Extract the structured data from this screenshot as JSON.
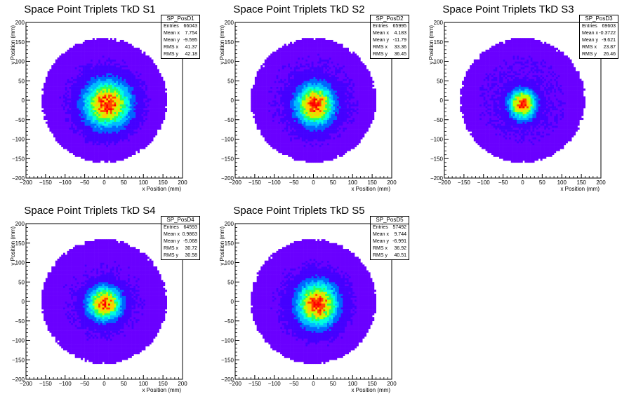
{
  "chart_data": [
    {
      "type": "heatmap",
      "title": "Space Point Triplets TkD S1",
      "xlabel": "x Position (mm)",
      "ylabel": "y Position (mm)",
      "xlim": [
        -200,
        200
      ],
      "ylim": [
        -200,
        200
      ],
      "xticks": [
        -200,
        -150,
        -100,
        -50,
        0,
        50,
        100,
        150,
        200
      ],
      "yticks": [
        -200,
        -150,
        -100,
        -50,
        0,
        50,
        100,
        150,
        200
      ],
      "grid": false,
      "stats": {
        "name": "SP_PosD1",
        "rows": [
          {
            "label": "Entries",
            "value": "66043"
          },
          {
            "label": "Mean x",
            "value": "7.754"
          },
          {
            "label": "Mean y",
            "value": "-9.595"
          },
          {
            "label": "RMS x",
            "value": "41.37"
          },
          {
            "label": "RMS y",
            "value": "42.18"
          }
        ]
      },
      "distribution": {
        "mean_x": 7.754,
        "mean_y": -9.595,
        "rms_x": 41.37,
        "rms_y": 42.18,
        "radius": 160,
        "entries": 66043
      }
    },
    {
      "type": "heatmap",
      "title": "Space Point Triplets TkD S2",
      "xlabel": "x Position (mm)",
      "ylabel": "y Position (mm)",
      "xlim": [
        -200,
        200
      ],
      "ylim": [
        -200,
        200
      ],
      "xticks": [
        -200,
        -150,
        -100,
        -50,
        0,
        50,
        100,
        150,
        200
      ],
      "yticks": [
        -200,
        -150,
        -100,
        -50,
        0,
        50,
        100,
        150,
        200
      ],
      "grid": false,
      "stats": {
        "name": "SP_PosD2",
        "rows": [
          {
            "label": "Entries",
            "value": "65995"
          },
          {
            "label": "Mean x",
            "value": "4.183"
          },
          {
            "label": "Mean y",
            "value": "-11.79"
          },
          {
            "label": "RMS x",
            "value": "33.36"
          },
          {
            "label": "RMS y",
            "value": "36.45"
          }
        ]
      },
      "distribution": {
        "mean_x": 4.183,
        "mean_y": -11.79,
        "rms_x": 33.36,
        "rms_y": 36.45,
        "radius": 160,
        "entries": 65995
      }
    },
    {
      "type": "heatmap",
      "title": "Space Point Triplets TkD S3",
      "xlabel": "x Position (mm)",
      "ylabel": "y Position (mm)",
      "xlim": [
        -200,
        200
      ],
      "ylim": [
        -200,
        200
      ],
      "xticks": [
        -200,
        -150,
        -100,
        -50,
        0,
        50,
        100,
        150,
        200
      ],
      "yticks": [
        -200,
        -150,
        -100,
        -50,
        0,
        50,
        100,
        150,
        200
      ],
      "grid": false,
      "stats": {
        "name": "SP_PosD3",
        "rows": [
          {
            "label": "Entries",
            "value": "69603"
          },
          {
            "label": "Mean x",
            "value": "-0.3722"
          },
          {
            "label": "Mean y",
            "value": "-9.621"
          },
          {
            "label": "RMS x",
            "value": "23.87"
          },
          {
            "label": "RMS y",
            "value": "26.46"
          }
        ]
      },
      "distribution": {
        "mean_x": -0.3722,
        "mean_y": -9.621,
        "rms_x": 23.87,
        "rms_y": 26.46,
        "radius": 160,
        "entries": 69603
      }
    },
    {
      "type": "heatmap",
      "title": "Space Point Triplets TkD S4",
      "xlabel": "x Position (mm)",
      "ylabel": "y Position (mm)",
      "xlim": [
        -200,
        200
      ],
      "ylim": [
        -200,
        200
      ],
      "xticks": [
        -200,
        -150,
        -100,
        -50,
        0,
        50,
        100,
        150,
        200
      ],
      "yticks": [
        -200,
        -150,
        -100,
        -50,
        0,
        50,
        100,
        150,
        200
      ],
      "grid": false,
      "stats": {
        "name": "SP_PosD4",
        "rows": [
          {
            "label": "Entries",
            "value": "64593"
          },
          {
            "label": "Mean x",
            "value": "0.9863"
          },
          {
            "label": "Mean y",
            "value": "-5.068"
          },
          {
            "label": "RMS x",
            "value": "30.72"
          },
          {
            "label": "RMS y",
            "value": "30.58"
          }
        ]
      },
      "distribution": {
        "mean_x": 0.9863,
        "mean_y": -5.068,
        "rms_x": 30.72,
        "rms_y": 30.58,
        "radius": 160,
        "entries": 64593
      }
    },
    {
      "type": "heatmap",
      "title": "Space Point Triplets TkD S5",
      "xlabel": "x Position (mm)",
      "ylabel": "y Position (mm)",
      "xlim": [
        -200,
        200
      ],
      "ylim": [
        -200,
        200
      ],
      "xticks": [
        -200,
        -150,
        -100,
        -50,
        0,
        50,
        100,
        150,
        200
      ],
      "yticks": [
        -200,
        -150,
        -100,
        -50,
        0,
        50,
        100,
        150,
        200
      ],
      "grid": false,
      "stats": {
        "name": "SP_PosD5",
        "rows": [
          {
            "label": "Entries",
            "value": "57492"
          },
          {
            "label": "Mean x",
            "value": "9.744"
          },
          {
            "label": "Mean y",
            "value": "-6.991"
          },
          {
            "label": "RMS x",
            "value": "36.92"
          },
          {
            "label": "RMS y",
            "value": "40.51"
          }
        ]
      },
      "distribution": {
        "mean_x": 9.744,
        "mean_y": -6.991,
        "rms_x": 36.92,
        "rms_y": 40.51,
        "radius": 160,
        "entries": 57492
      }
    }
  ],
  "colors": {
    "palette": [
      "#6a00ff",
      "#4400ff",
      "#0066ff",
      "#00bbff",
      "#00ffdd",
      "#22ff66",
      "#bbff00",
      "#ffcc00",
      "#ff4400",
      "#ff0000"
    ]
  }
}
